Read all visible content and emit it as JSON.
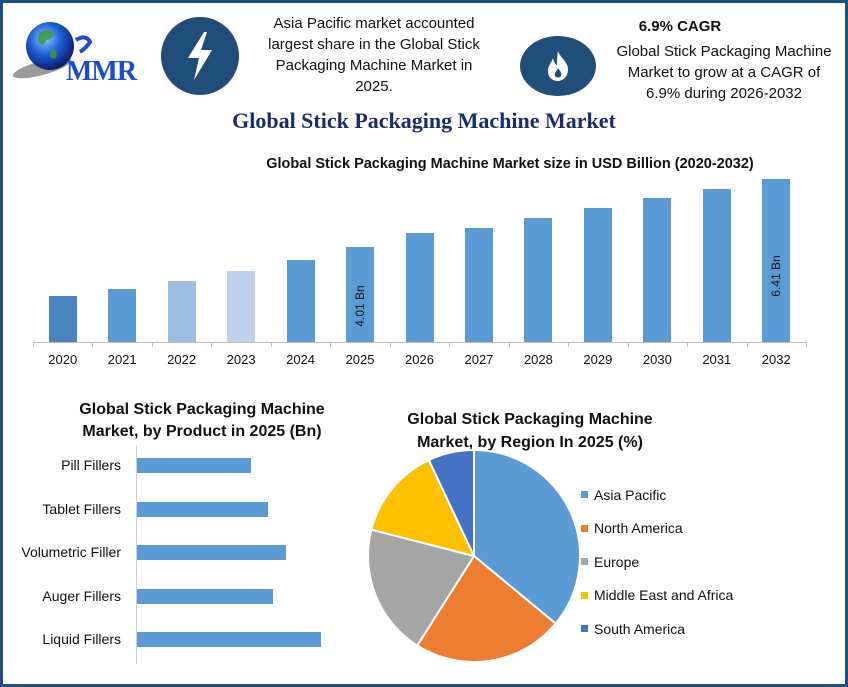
{
  "header": {
    "logo_text": "MMR",
    "bolt_icon": "lightning-bolt-icon",
    "flame_icon": "flame-icon",
    "info_left": [
      "Asia Pacific market accounted",
      "largest share in the Global Stick",
      "Packaging Machine Market in",
      "2025."
    ],
    "info_right_title": "6.9% CAGR",
    "info_right": [
      "Global Stick Packaging Machine",
      "Market to grow at a CAGR of",
      "6.9% during 2026-2032"
    ]
  },
  "main_title": "Global Stick Packaging Machine Market",
  "colors": {
    "frame": "#1f4e79",
    "title": "#1a2d6a",
    "bar_primary": "#5b9bd5",
    "bar_2020": "#4a85bd",
    "bar_2022": "#9dbde3",
    "bar_2023": "#bdd3ec"
  },
  "chart_data": [
    {
      "type": "bar",
      "title": "Global Stick Packaging Machine Market size in USD Billion (2020-2032)",
      "xlabel": "",
      "ylabel": "USD Billion",
      "categories": [
        "2020",
        "2021",
        "2022",
        "2023",
        "2024",
        "2025",
        "2026",
        "2027",
        "2028",
        "2029",
        "2030",
        "2031",
        "2032"
      ],
      "values": [
        2.28,
        2.53,
        2.81,
        3.16,
        3.55,
        4.01,
        4.5,
        4.68,
        5.03,
        5.39,
        5.74,
        6.06,
        6.41
      ],
      "bar_colors": [
        "#4a85bd",
        "#5b9bd5",
        "#9dbde3",
        "#bdd3ec",
        "#5b9bd5",
        "#5b9bd5",
        "#5b9bd5",
        "#5b9bd5",
        "#5b9bd5",
        "#5b9bd5",
        "#5b9bd5",
        "#5b9bd5",
        "#5b9bd5"
      ],
      "annotations": [
        {
          "category": "2025",
          "text": "4.01 Bn"
        },
        {
          "category": "2032",
          "text": "6.41 Bn"
        }
      ],
      "grid": false
    },
    {
      "type": "bar",
      "orientation": "horizontal",
      "title": "Global Stick Packaging Machine Market, by Product in 2025 (Bn)",
      "categories": [
        "Pill Fillers",
        "Tablet Fillers",
        "Volumetric Filler",
        "Auger Fillers",
        "Liquid Fillers"
      ],
      "values": [
        0.62,
        0.71,
        0.81,
        0.74,
        1.0
      ],
      "grid": false
    },
    {
      "type": "pie",
      "title": "Global Stick Packaging Machine Market, by Region In 2025 (%)",
      "categories": [
        "Asia Pacific",
        "North America",
        "Europe",
        "Middle East and Africa",
        "South America"
      ],
      "values": [
        36,
        23,
        20,
        14,
        7
      ],
      "colors": [
        "#5b9bd5",
        "#ed7d31",
        "#a5a5a5",
        "#ffc000",
        "#4472c4"
      ],
      "legend_position": "right"
    }
  ]
}
